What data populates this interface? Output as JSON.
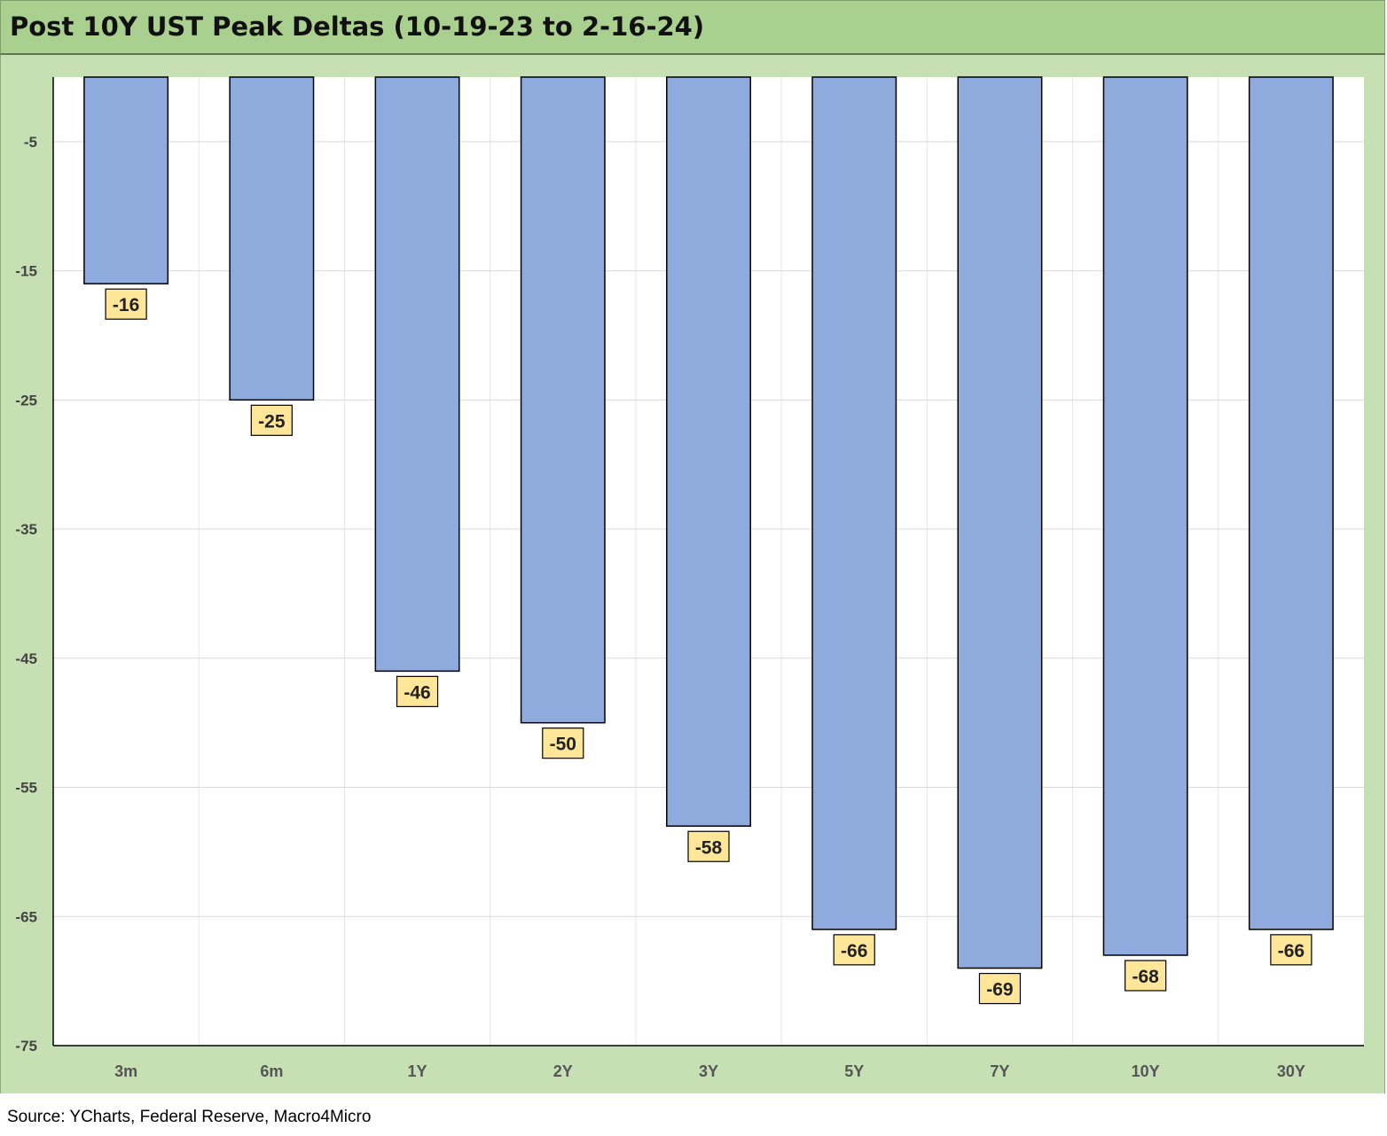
{
  "chart_data": {
    "type": "bar",
    "title": "Post 10Y UST Peak Deltas (10-19-23 to 2-16-24)",
    "categories": [
      "3m",
      "6m",
      "1Y",
      "2Y",
      "3Y",
      "5Y",
      "7Y",
      "10Y",
      "30Y"
    ],
    "series": [
      {
        "values": [
          -16,
          -25,
          -46,
          -50,
          -58,
          -66,
          -69,
          -68,
          -66
        ],
        "labels": [
          "-16",
          "-25",
          "-46",
          "-50",
          "-58",
          "-66",
          "-69",
          "-68",
          "-66"
        ]
      }
    ],
    "ylim": [
      -75,
      0
    ],
    "yticks": [
      -5,
      -15,
      -25,
      -35,
      -45,
      -55,
      -65,
      -75
    ],
    "ytick_labels": [
      "-5",
      "-15",
      "-25",
      "-35",
      "-45",
      "-55",
      "-65",
      "-75"
    ],
    "grid": true,
    "legend": "none",
    "colors": {
      "bar_fill": "#8faadc",
      "bar_stroke": "#000000",
      "label_fill": "#ffe699",
      "frame_background": "#c6e0b4",
      "title_background": "#a9d08e"
    }
  },
  "source_note": "Source: YCharts, Federal Reserve, Macro4Micro"
}
